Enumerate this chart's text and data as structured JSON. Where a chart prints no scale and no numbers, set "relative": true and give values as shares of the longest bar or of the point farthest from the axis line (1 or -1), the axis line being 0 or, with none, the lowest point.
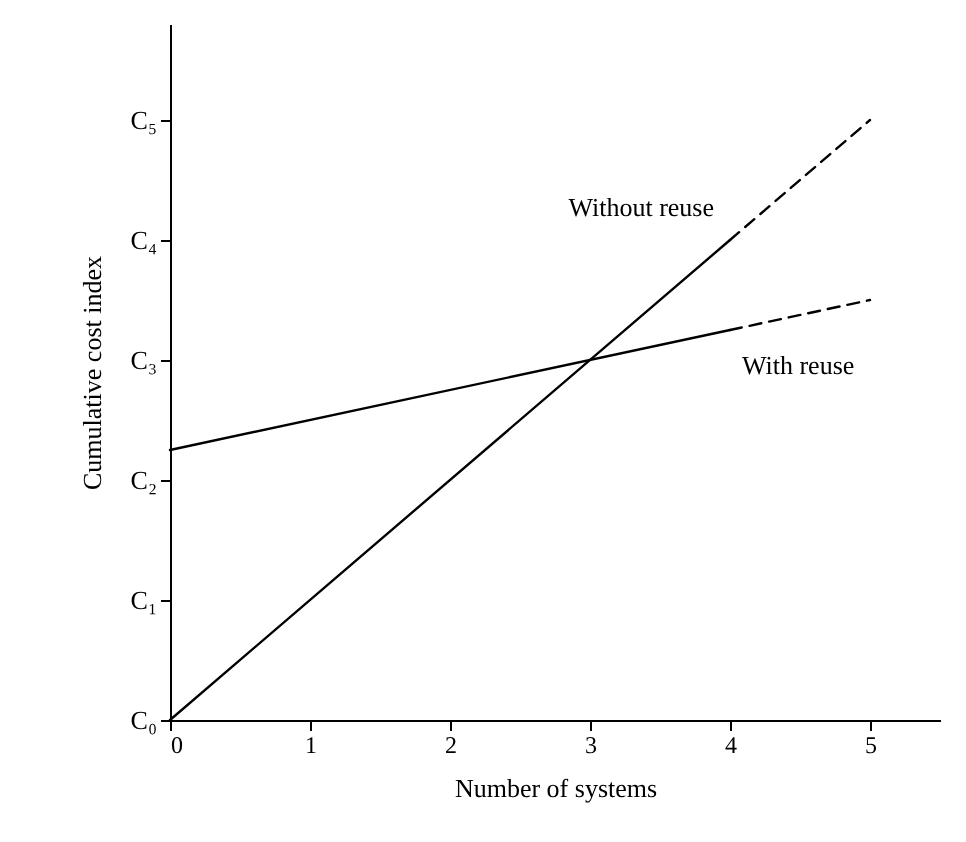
{
  "chart_data": {
    "type": "line",
    "xlabel": "Number of systems",
    "ylabel": "Cumulative cost index",
    "series": [
      {
        "name": "Without reuse",
        "color": "#000000",
        "x": [
          0,
          4
        ],
        "values": [
          0,
          0.8
        ]
      },
      {
        "color": "#000000",
        "x": [
          4,
          5
        ],
        "values": [
          0.8,
          1
        ],
        "line_style": "dashed"
      },
      {
        "name": "With reuse",
        "color": "#000000",
        "x": [
          0,
          4
        ],
        "values": [
          0.45,
          0.65
        ]
      },
      {
        "color": "#000000",
        "x": [
          4,
          5
        ],
        "values": [
          0.65,
          0.7
        ],
        "line_style": "dashed"
      }
    ],
    "relative": true,
    "xlim": [
      0,
      5.5
    ],
    "xticks": [
      0,
      1,
      2,
      3,
      4,
      5
    ],
    "y_categories": [
      "C₀",
      "C₁",
      "C₂",
      "C₃",
      "C₄",
      "C₅"
    ],
    "grid": false,
    "line_style": "solid",
    "marker": "none"
  }
}
